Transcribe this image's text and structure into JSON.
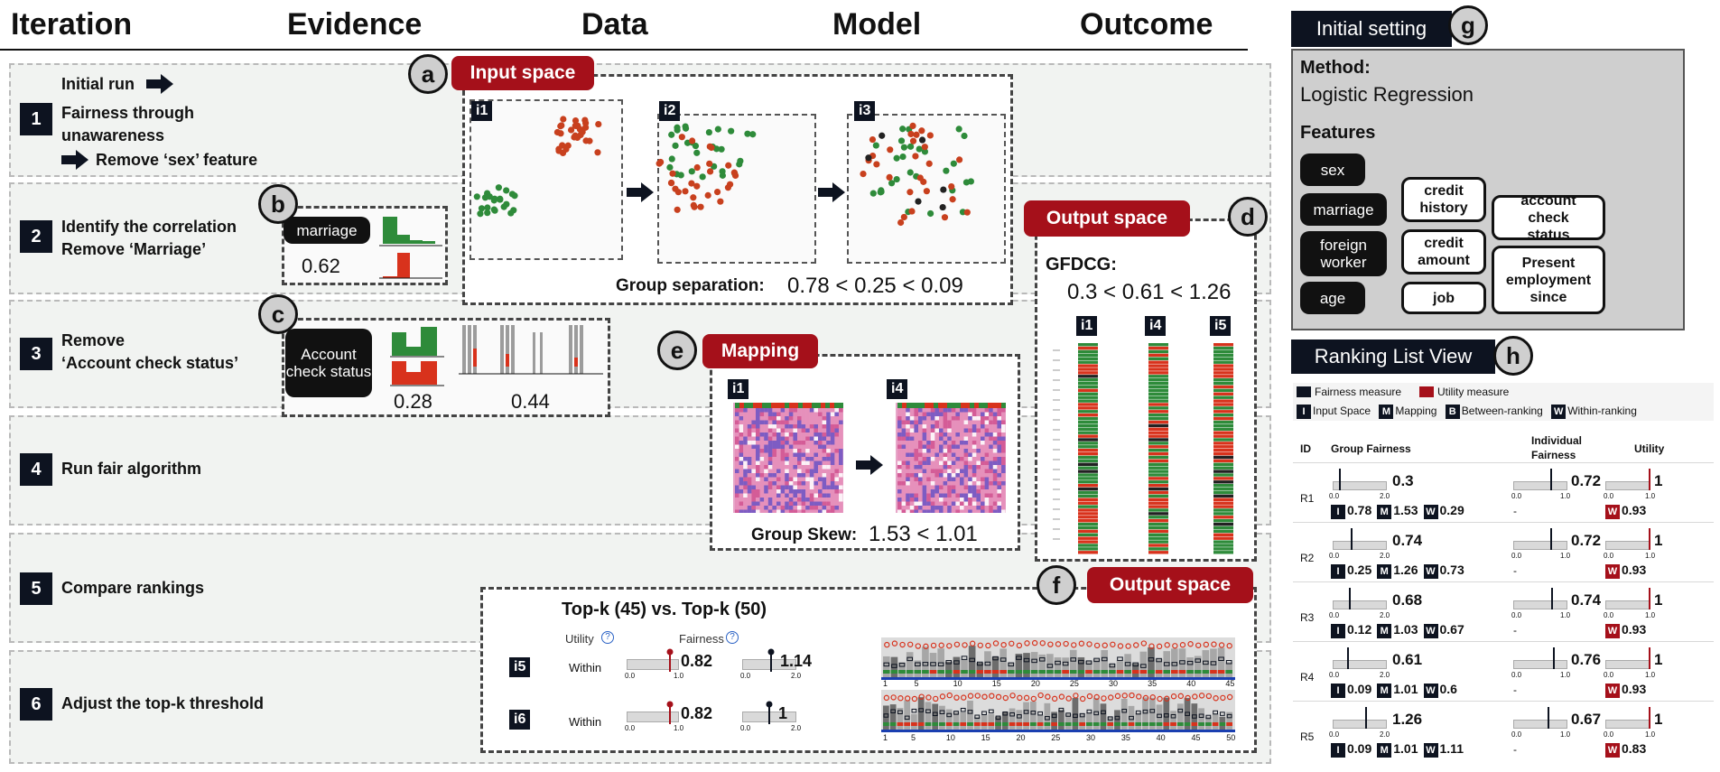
{
  "headers": {
    "iteration": "Iteration",
    "evidence": "Evidence",
    "data": "Data",
    "model": "Model",
    "outcome": "Outcome"
  },
  "rows": [
    {
      "num": "1",
      "lines": [
        "Initial run",
        "Fairness through",
        "unawareness",
        "Remove ‘sex’ feature"
      ]
    },
    {
      "num": "2",
      "lines": [
        "Identify the correlation",
        "Remove ‘Marriage’"
      ]
    },
    {
      "num": "3",
      "lines": [
        "Remove",
        "‘Account check status’"
      ]
    },
    {
      "num": "4",
      "lines": [
        "Run fair algorithm"
      ]
    },
    {
      "num": "5",
      "lines": [
        "Compare rankings"
      ]
    },
    {
      "num": "6",
      "lines": [
        "Adjust the top-k threshold"
      ]
    }
  ],
  "panels": {
    "a": {
      "letter": "a",
      "label": "Input space",
      "tags": [
        "i1",
        "i2",
        "i3"
      ],
      "caption_bold": "Group separation:",
      "caption_value": "0.78 < 0.25 < 0.09"
    },
    "b": {
      "letter": "b",
      "pill": "marriage",
      "value": "0.62"
    },
    "c": {
      "letter": "c",
      "pill": "Account check status",
      "value1": "0.28",
      "value2": "0.44"
    },
    "d": {
      "letter": "d",
      "label": "Output space",
      "metric": "GFDCG:",
      "value": "0.3 < 0.61 < 1.26",
      "tags": [
        "i1",
        "i4",
        "i5"
      ]
    },
    "e": {
      "letter": "e",
      "label": "Mapping",
      "tags": [
        "i1",
        "i4"
      ],
      "caption_bold": "Group Skew:",
      "caption_value": "1.53 < 1.01"
    },
    "f": {
      "letter": "f",
      "label": "Output space",
      "title": "Top-k (45) vs. Top-k (50)",
      "utility": "Utility",
      "fairness": "Fairness",
      "rows": [
        {
          "tag": "i5",
          "within": "Within",
          "u": "0.82",
          "f": "1.14"
        },
        {
          "tag": "i6",
          "within": "Within",
          "u": "0.82",
          "f": "1"
        }
      ]
    },
    "g": {
      "letter": "g",
      "label": "Initial setting",
      "method_label": "Method:",
      "method": "Logistic Regression",
      "features_label": "Features",
      "black_features": [
        "sex",
        "marriage",
        "foreign worker",
        "age"
      ],
      "white_features": [
        "credit history",
        "credit amount",
        "job",
        "account check status",
        "Present employment since"
      ]
    },
    "h": {
      "letter": "h",
      "label": "Ranking List View",
      "legend": {
        "fairness": "Fairness measure",
        "utility": "Utility measure",
        "i": "Input Space",
        "m": "Mapping",
        "b": "Between-ranking",
        "w": "Within-ranking"
      },
      "cols": {
        "id": "ID",
        "group": "Group Fairness",
        "indiv": "Individual Fairness",
        "utility": "Utility"
      },
      "rows": [
        {
          "id": "R1",
          "g": "0.3",
          "ind": "0.72",
          "u": "1",
          "I": "0.78",
          "M": "1.53",
          "W": "0.29",
          "uw": "0.93"
        },
        {
          "id": "R2",
          "g": "0.74",
          "ind": "0.72",
          "u": "1",
          "I": "0.25",
          "M": "1.26",
          "W": "0.73",
          "uw": "0.93"
        },
        {
          "id": "R3",
          "g": "0.68",
          "ind": "0.74",
          "u": "1",
          "I": "0.12",
          "M": "1.03",
          "W": "0.67",
          "uw": "0.93"
        },
        {
          "id": "R4",
          "g": "0.61",
          "ind": "0.76",
          "u": "1",
          "I": "0.09",
          "M": "1.01",
          "W": "0.6",
          "uw": "0.93"
        },
        {
          "id": "R5",
          "g": "1.26",
          "ind": "0.67",
          "u": "1",
          "I": "0.09",
          "M": "1.01",
          "W": "1.11",
          "uw": "0.83"
        }
      ]
    }
  },
  "ticks": {
    "g0": "0.0",
    "g2": "2.0",
    "u0": "0.0",
    "u1": "1.0",
    "dash": "-",
    "I": "I",
    "M": "M",
    "B": "B",
    "W": "W"
  },
  "axis_k45": [
    "1",
    "5",
    "10",
    "15",
    "20",
    "25",
    "30",
    "35",
    "40",
    "45"
  ],
  "axis_k50": [
    "1",
    "5",
    "10",
    "15",
    "20",
    "25",
    "30",
    "35",
    "40",
    "45",
    "50"
  ]
}
